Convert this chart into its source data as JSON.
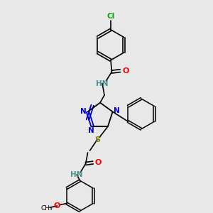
{
  "bg_color": "#e8e8e8",
  "bond_color": "#000000",
  "N_color": "#0000cc",
  "O_color": "#ff0000",
  "S_color": "#808000",
  "Cl_color": "#00aa00",
  "H_color": "#4a9090",
  "C_color": "#000000",
  "fig_w": 3.0,
  "fig_h": 3.0,
  "dpi": 100,
  "xlim": [
    0,
    10
  ],
  "ylim": [
    0,
    10
  ]
}
